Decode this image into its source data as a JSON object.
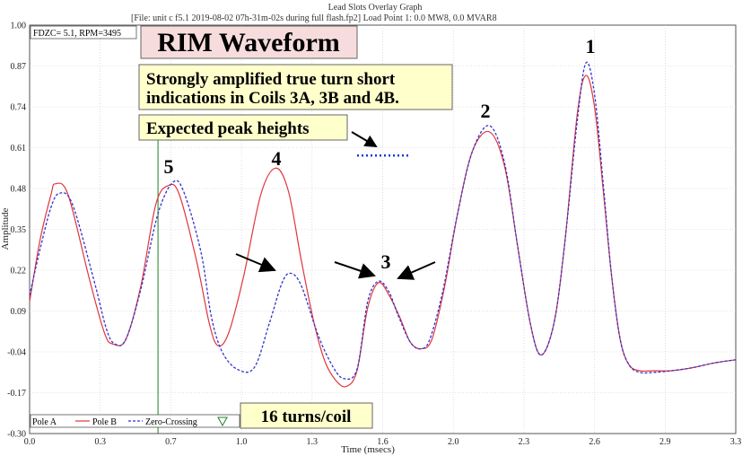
{
  "header": {
    "title": "Lead Slots Overlay Graph",
    "file_line": "[File:                    unit c f5.1 2019-08-02 07h-31m-02s during full flash.fp2]  Load Point 1:   0.0 MW8,    0.0 MVAR8"
  },
  "info_box": "FDZC= 5.1, RPM=3495",
  "annotations": {
    "title": "RIM Waveform",
    "note_line1": "Strongly amplified true turn short",
    "note_line2": "indications in Coils 3A, 3B and 4B.",
    "expected": "Expected peak heights",
    "turns": "16 turns/coil",
    "peak_labels": [
      "1",
      "2",
      "3",
      "4",
      "5"
    ]
  },
  "legend": [
    "Pole A",
    "Pole B",
    "Zero-Crossing"
  ],
  "colors": {
    "pole_a": "#3333cc",
    "pole_b": "#e0353d",
    "zero_crossing": "#208020",
    "expected_line": "#1a3ad6",
    "note_bg": "#ffffcc",
    "title_bg": "#f6dcdc"
  },
  "chart_data": {
    "type": "line",
    "title": "",
    "xlabel": "Time (msecs)",
    "ylabel": "Amplitude",
    "xlim": [
      0.0,
      3.3
    ],
    "ylim": [
      -0.3,
      1.0
    ],
    "x_ticks": [
      "0.0",
      "0.3",
      "0.7",
      "1.0",
      "1.3",
      "1.6",
      "2.0",
      "2.3",
      "2.6",
      "2.9",
      "3.3"
    ],
    "y_ticks": [
      "1.00",
      "0.87",
      "0.74",
      "0.61",
      "0.48",
      "0.35",
      "0.22",
      "0.09",
      "-0.04",
      "-0.17",
      "-0.30"
    ],
    "zero_crossing_x": 0.6,
    "expected_peak_height": 0.585,
    "series": [
      {
        "name": "Pole A",
        "style": "dashed",
        "points": [
          [
            0.0,
            0.14
          ],
          [
            0.05,
            0.29
          ],
          [
            0.1,
            0.42
          ],
          [
            0.14,
            0.465
          ],
          [
            0.2,
            0.43
          ],
          [
            0.3,
            0.19
          ],
          [
            0.36,
            0.03
          ],
          [
            0.4,
            -0.015
          ],
          [
            0.45,
            0.0
          ],
          [
            0.52,
            0.16
          ],
          [
            0.6,
            0.4
          ],
          [
            0.67,
            0.5
          ],
          [
            0.72,
            0.47
          ],
          [
            0.8,
            0.28
          ],
          [
            0.85,
            0.07
          ],
          [
            0.9,
            -0.04
          ],
          [
            0.97,
            -0.095
          ],
          [
            1.05,
            -0.09
          ],
          [
            1.12,
            0.05
          ],
          [
            1.18,
            0.18
          ],
          [
            1.22,
            0.21
          ],
          [
            1.27,
            0.17
          ],
          [
            1.35,
            0.01
          ],
          [
            1.42,
            -0.09
          ],
          [
            1.47,
            -0.125
          ],
          [
            1.53,
            -0.095
          ],
          [
            1.58,
            0.12
          ],
          [
            1.63,
            0.185
          ],
          [
            1.68,
            0.15
          ],
          [
            1.72,
            0.08
          ],
          [
            1.78,
            -0.01
          ],
          [
            1.83,
            -0.03
          ],
          [
            1.87,
            0.0
          ],
          [
            1.93,
            0.15
          ],
          [
            2.0,
            0.4
          ],
          [
            2.07,
            0.6
          ],
          [
            2.15,
            0.68
          ],
          [
            2.22,
            0.56
          ],
          [
            2.28,
            0.3
          ],
          [
            2.34,
            0.05
          ],
          [
            2.39,
            -0.05
          ],
          [
            2.45,
            0.05
          ],
          [
            2.5,
            0.3
          ],
          [
            2.56,
            0.7
          ],
          [
            2.6,
            0.88
          ],
          [
            2.64,
            0.78
          ],
          [
            2.68,
            0.5
          ],
          [
            2.72,
            0.2
          ],
          [
            2.76,
            0.0
          ],
          [
            2.8,
            -0.08
          ],
          [
            2.85,
            -0.105
          ],
          [
            2.92,
            -0.105
          ],
          [
            3.0,
            -0.1
          ],
          [
            3.1,
            -0.09
          ],
          [
            3.2,
            -0.075
          ],
          [
            3.3,
            -0.065
          ]
        ]
      },
      {
        "name": "Pole B",
        "style": "solid",
        "points": [
          [
            0.0,
            0.12
          ],
          [
            0.05,
            0.32
          ],
          [
            0.1,
            0.46
          ],
          [
            0.12,
            0.495
          ],
          [
            0.18,
            0.46
          ],
          [
            0.28,
            0.19
          ],
          [
            0.35,
            0.02
          ],
          [
            0.39,
            -0.015
          ],
          [
            0.45,
            0.0
          ],
          [
            0.52,
            0.17
          ],
          [
            0.59,
            0.43
          ],
          [
            0.65,
            0.49
          ],
          [
            0.7,
            0.46
          ],
          [
            0.78,
            0.25
          ],
          [
            0.84,
            0.05
          ],
          [
            0.88,
            -0.02
          ],
          [
            0.93,
            0.02
          ],
          [
            1.0,
            0.2
          ],
          [
            1.08,
            0.46
          ],
          [
            1.15,
            0.545
          ],
          [
            1.21,
            0.47
          ],
          [
            1.27,
            0.25
          ],
          [
            1.33,
            0.05
          ],
          [
            1.38,
            -0.07
          ],
          [
            1.43,
            -0.13
          ],
          [
            1.48,
            -0.15
          ],
          [
            1.53,
            -0.1
          ],
          [
            1.58,
            0.1
          ],
          [
            1.63,
            0.18
          ],
          [
            1.68,
            0.14
          ],
          [
            1.73,
            0.07
          ],
          [
            1.78,
            -0.01
          ],
          [
            1.83,
            -0.03
          ],
          [
            1.88,
            0.0
          ],
          [
            1.94,
            0.17
          ],
          [
            2.0,
            0.4
          ],
          [
            2.07,
            0.6
          ],
          [
            2.15,
            0.66
          ],
          [
            2.22,
            0.55
          ],
          [
            2.28,
            0.3
          ],
          [
            2.34,
            0.05
          ],
          [
            2.39,
            -0.05
          ],
          [
            2.45,
            0.05
          ],
          [
            2.5,
            0.3
          ],
          [
            2.56,
            0.72
          ],
          [
            2.6,
            0.84
          ],
          [
            2.64,
            0.74
          ],
          [
            2.68,
            0.48
          ],
          [
            2.72,
            0.2
          ],
          [
            2.76,
            0.0
          ],
          [
            2.8,
            -0.08
          ],
          [
            2.85,
            -0.1
          ],
          [
            2.92,
            -0.1
          ],
          [
            3.0,
            -0.1
          ],
          [
            3.1,
            -0.09
          ],
          [
            3.2,
            -0.075
          ],
          [
            3.3,
            -0.065
          ]
        ]
      }
    ]
  }
}
